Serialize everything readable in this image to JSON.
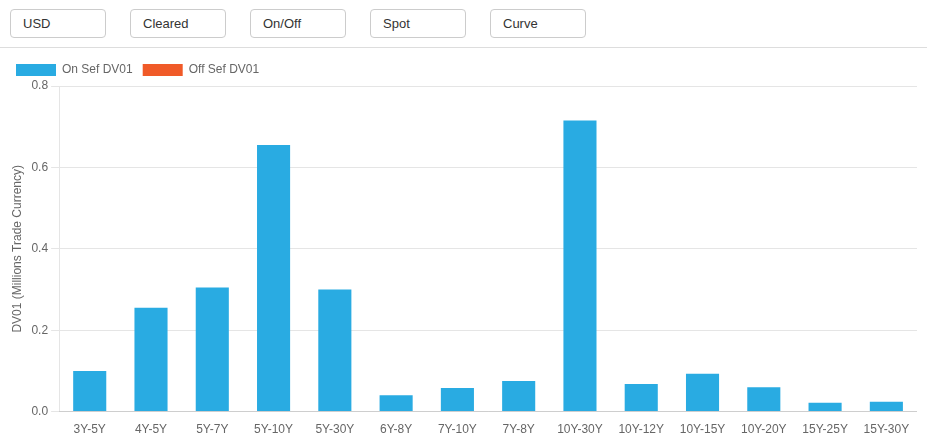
{
  "chart_data": {
    "type": "bar",
    "stacked": true,
    "categories": [
      "3Y-5Y",
      "4Y-5Y",
      "5Y-7Y",
      "5Y-10Y",
      "5Y-30Y",
      "6Y-8Y",
      "7Y-10Y",
      "7Y-8Y",
      "10Y-30Y",
      "10Y-12Y",
      "10Y-15Y",
      "10Y-20Y",
      "15Y-25Y",
      "15Y-30Y"
    ],
    "series": [
      {
        "name": "On Sef DV01",
        "color": "#29abe2",
        "values": [
          0.1,
          0.255,
          0.305,
          0.655,
          0.3,
          0.04,
          0.058,
          0.075,
          0.715,
          0.068,
          0.093,
          0.06,
          0.022,
          0.024
        ]
      },
      {
        "name": "Off Sef DV01",
        "color": "#f05a28",
        "values": [
          0,
          0,
          0,
          0,
          0,
          0,
          0,
          0,
          0,
          0,
          0,
          0,
          0,
          0
        ]
      }
    ],
    "ylabel": "DV01 (Millions Trade Currency)",
    "ylim": [
      0,
      0.8
    ],
    "yticks": [
      {
        "value": 0.0,
        "label": "0.0"
      },
      0.2,
      0.4,
      0.6,
      0.8
    ],
    "grid": true,
    "legend": "upper left",
    "annotations": [
      "USD",
      "Cleared",
      "On/Off",
      "Spot",
      "Curve"
    ]
  }
}
